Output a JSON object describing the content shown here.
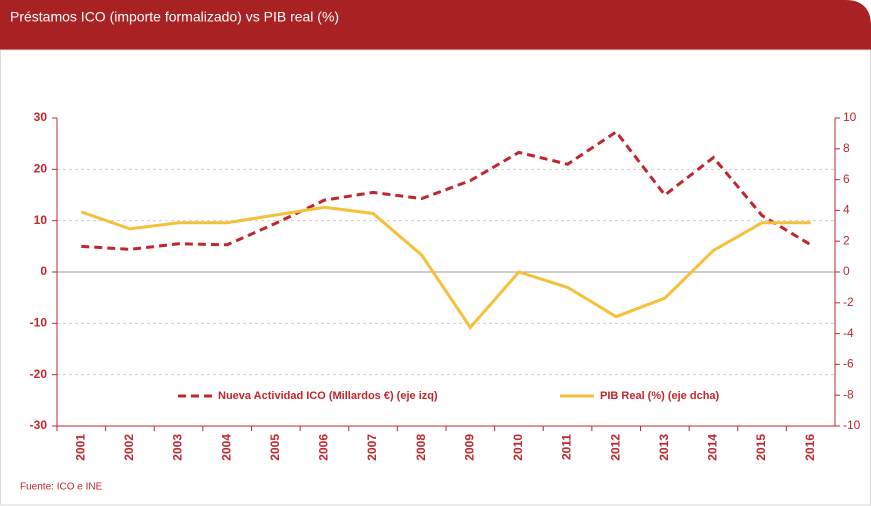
{
  "chart_data": {
    "type": "line",
    "title": "Préstamos ICO (importe formalizado) vs PIB real (%)",
    "source": "Fuente: ICO e INE",
    "categories": [
      "2001",
      "2002",
      "2003",
      "2004",
      "2005",
      "2006",
      "2007",
      "2008",
      "2009",
      "2010",
      "2011",
      "2012",
      "2013",
      "2014",
      "2015",
      "2016"
    ],
    "series": [
      {
        "name": "Nueva Actividad ICO (Millardos  €) (eje izq)",
        "color": "#c0272d",
        "line_style": "dashed",
        "values": [
          5,
          4.4,
          5.5,
          5.3,
          9.5,
          14,
          15.5,
          14.3,
          17.8,
          23.3,
          21,
          27.3,
          15,
          22.3,
          11,
          5.3
        ]
      },
      {
        "name": "PIB Real (%) (eje dcha)",
        "color": "#f5c03a",
        "line_style": "solid",
        "axis": "y2",
        "values": [
          3.9,
          2.8,
          3.2,
          3.2,
          3.7,
          4.2,
          3.8,
          1.1,
          -3.6,
          0,
          -1,
          -2.9,
          -1.7,
          1.4,
          3.2,
          3.2
        ]
      }
    ],
    "ylim": [
      -30,
      30
    ],
    "yticks": [
      -30,
      -20,
      -10,
      0,
      10,
      20,
      30
    ],
    "y2lim": [
      -10,
      10
    ],
    "y2ticks": [
      -10,
      -8,
      -6,
      -4,
      -2,
      0,
      2,
      4,
      6,
      8,
      10
    ],
    "grid": true,
    "legend": "bottom"
  }
}
